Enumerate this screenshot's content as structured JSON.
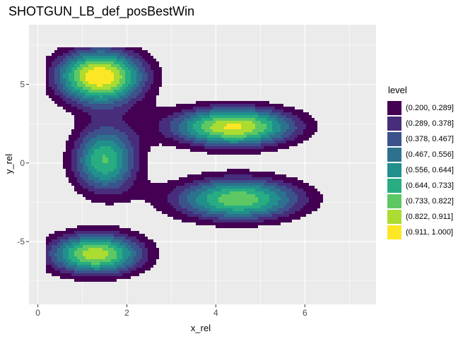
{
  "chart_data": {
    "type": "contour",
    "title": "SHOTGUN_LB_def_posBestWin",
    "xlabel": "x_rel",
    "ylabel": "y_rel",
    "xlim": [
      -0.2,
      7.6
    ],
    "ylim": [
      -9,
      8.8
    ],
    "x_ticks": [
      0,
      2,
      4,
      6
    ],
    "y_ticks": [
      -5,
      0,
      5
    ],
    "grid": true,
    "legend": {
      "title": "level",
      "placement": "right",
      "entries": [
        {
          "label": "(0.200, 0.289]",
          "color": "#440154"
        },
        {
          "label": "(0.289, 0.378]",
          "color": "#472D7B"
        },
        {
          "label": "(0.378, 0.467]",
          "color": "#3B528B"
        },
        {
          "label": "(0.467, 0.556]",
          "color": "#2C728E"
        },
        {
          "label": "(0.556, 0.644]",
          "color": "#21908C"
        },
        {
          "label": "(0.644, 0.733]",
          "color": "#27AD81"
        },
        {
          "label": "(0.733, 0.822]",
          "color": "#5DC863"
        },
        {
          "label": "(0.822, 0.911]",
          "color": "#AADC32"
        },
        {
          "label": "(0.911, 1.000]",
          "color": "#FDE725"
        }
      ]
    },
    "density_peaks": [
      {
        "x": 1.4,
        "y": 5.5,
        "sx": 0.75,
        "sy": 1.3,
        "w": 1.0
      },
      {
        "x": 4.4,
        "y": 2.3,
        "sx": 1.05,
        "sy": 0.95,
        "w": 0.93
      },
      {
        "x": 4.5,
        "y": -2.3,
        "sx": 1.1,
        "sy": 1.05,
        "w": 0.8
      },
      {
        "x": 1.3,
        "y": -5.8,
        "sx": 0.8,
        "sy": 1.0,
        "w": 0.88
      },
      {
        "x": 1.5,
        "y": 0.2,
        "sx": 0.55,
        "sy": 1.6,
        "w": 0.74
      }
    ],
    "panel_background": "#EBEBEB"
  }
}
